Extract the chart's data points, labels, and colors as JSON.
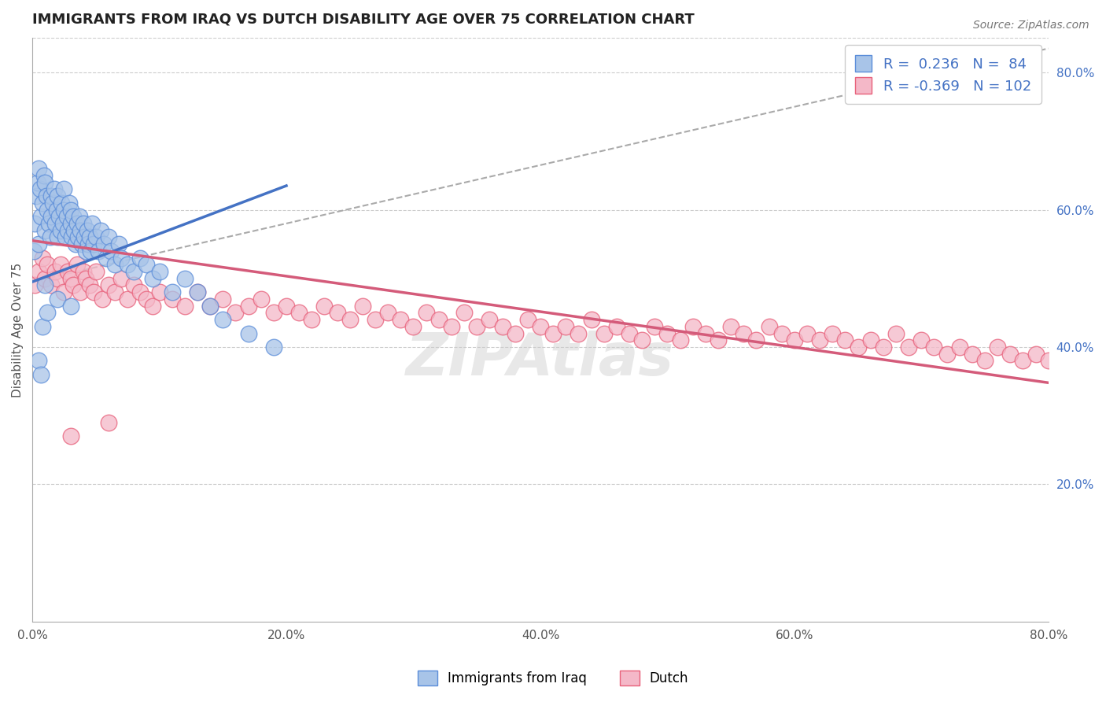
{
  "title": "IMMIGRANTS FROM IRAQ VS DUTCH DISABILITY AGE OVER 75 CORRELATION CHART",
  "source": "Source: ZipAtlas.com",
  "ylabel": "Disability Age Over 75",
  "xlim": [
    0.0,
    0.8
  ],
  "ylim": [
    0.0,
    0.85
  ],
  "xtick_labels": [
    "0.0%",
    "20.0%",
    "40.0%",
    "60.0%",
    "80.0%"
  ],
  "xtick_vals": [
    0.0,
    0.2,
    0.4,
    0.6,
    0.8
  ],
  "ytick_right_labels": [
    "20.0%",
    "40.0%",
    "60.0%",
    "80.0%"
  ],
  "ytick_right_vals": [
    0.2,
    0.4,
    0.6,
    0.8
  ],
  "R_iraq": 0.236,
  "N_iraq": 84,
  "R_dutch": -0.369,
  "N_dutch": 102,
  "color_iraq_fill": "#a8c4e8",
  "color_iraq_edge": "#5b8dd9",
  "color_dutch_fill": "#f4b8c8",
  "color_dutch_edge": "#e8607a",
  "color_trend_iraq": "#4472c4",
  "color_trend_dutch": "#d45b7a",
  "color_trend_dashed": "#aaaaaa",
  "legend_label_iraq": "Immigrants from Iraq",
  "legend_label_dutch": "Dutch",
  "watermark": "ZIPAtlas",
  "background_color": "#ffffff",
  "grid_color": "#cccccc",
  "title_color": "#222222",
  "axis_label_color": "#555555",
  "right_tick_color": "#4472c4",
  "source_color": "#777777",
  "iraq_x": [
    0.001,
    0.002,
    0.003,
    0.004,
    0.005,
    0.005,
    0.006,
    0.007,
    0.008,
    0.009,
    0.01,
    0.01,
    0.011,
    0.012,
    0.013,
    0.014,
    0.015,
    0.015,
    0.016,
    0.017,
    0.018,
    0.019,
    0.02,
    0.02,
    0.021,
    0.022,
    0.023,
    0.024,
    0.025,
    0.025,
    0.026,
    0.027,
    0.028,
    0.029,
    0.03,
    0.03,
    0.031,
    0.032,
    0.033,
    0.034,
    0.035,
    0.036,
    0.037,
    0.038,
    0.039,
    0.04,
    0.041,
    0.042,
    0.043,
    0.044,
    0.045,
    0.046,
    0.047,
    0.048,
    0.05,
    0.052,
    0.054,
    0.056,
    0.058,
    0.06,
    0.062,
    0.065,
    0.068,
    0.07,
    0.075,
    0.08,
    0.085,
    0.09,
    0.095,
    0.1,
    0.11,
    0.12,
    0.13,
    0.14,
    0.15,
    0.17,
    0.19,
    0.01,
    0.02,
    0.03,
    0.005,
    0.007,
    0.008,
    0.012
  ],
  "iraq_y": [
    0.54,
    0.58,
    0.62,
    0.64,
    0.66,
    0.55,
    0.63,
    0.59,
    0.61,
    0.65,
    0.57,
    0.64,
    0.62,
    0.6,
    0.58,
    0.56,
    0.62,
    0.59,
    0.61,
    0.63,
    0.58,
    0.6,
    0.56,
    0.62,
    0.59,
    0.57,
    0.61,
    0.58,
    0.6,
    0.63,
    0.56,
    0.59,
    0.57,
    0.61,
    0.58,
    0.6,
    0.56,
    0.59,
    0.57,
    0.55,
    0.58,
    0.56,
    0.59,
    0.57,
    0.55,
    0.58,
    0.56,
    0.54,
    0.57,
    0.55,
    0.56,
    0.54,
    0.58,
    0.55,
    0.56,
    0.54,
    0.57,
    0.55,
    0.53,
    0.56,
    0.54,
    0.52,
    0.55,
    0.53,
    0.52,
    0.51,
    0.53,
    0.52,
    0.5,
    0.51,
    0.48,
    0.5,
    0.48,
    0.46,
    0.44,
    0.42,
    0.4,
    0.49,
    0.47,
    0.46,
    0.38,
    0.36,
    0.43,
    0.45
  ],
  "dutch_x": [
    0.002,
    0.005,
    0.008,
    0.01,
    0.012,
    0.015,
    0.018,
    0.02,
    0.022,
    0.025,
    0.028,
    0.03,
    0.032,
    0.035,
    0.038,
    0.04,
    0.042,
    0.045,
    0.048,
    0.05,
    0.055,
    0.06,
    0.065,
    0.07,
    0.075,
    0.08,
    0.085,
    0.09,
    0.095,
    0.1,
    0.11,
    0.12,
    0.13,
    0.14,
    0.15,
    0.16,
    0.17,
    0.18,
    0.19,
    0.2,
    0.21,
    0.22,
    0.23,
    0.24,
    0.25,
    0.26,
    0.27,
    0.28,
    0.29,
    0.3,
    0.31,
    0.32,
    0.33,
    0.34,
    0.35,
    0.36,
    0.37,
    0.38,
    0.39,
    0.4,
    0.41,
    0.42,
    0.43,
    0.44,
    0.45,
    0.46,
    0.47,
    0.48,
    0.49,
    0.5,
    0.51,
    0.52,
    0.53,
    0.54,
    0.55,
    0.56,
    0.57,
    0.58,
    0.59,
    0.6,
    0.61,
    0.62,
    0.63,
    0.64,
    0.65,
    0.66,
    0.67,
    0.68,
    0.69,
    0.7,
    0.71,
    0.72,
    0.73,
    0.74,
    0.75,
    0.76,
    0.77,
    0.78,
    0.79,
    0.8,
    0.03,
    0.06
  ],
  "dutch_y": [
    0.49,
    0.51,
    0.53,
    0.5,
    0.52,
    0.49,
    0.51,
    0.5,
    0.52,
    0.48,
    0.51,
    0.5,
    0.49,
    0.52,
    0.48,
    0.51,
    0.5,
    0.49,
    0.48,
    0.51,
    0.47,
    0.49,
    0.48,
    0.5,
    0.47,
    0.49,
    0.48,
    0.47,
    0.46,
    0.48,
    0.47,
    0.46,
    0.48,
    0.46,
    0.47,
    0.45,
    0.46,
    0.47,
    0.45,
    0.46,
    0.45,
    0.44,
    0.46,
    0.45,
    0.44,
    0.46,
    0.44,
    0.45,
    0.44,
    0.43,
    0.45,
    0.44,
    0.43,
    0.45,
    0.43,
    0.44,
    0.43,
    0.42,
    0.44,
    0.43,
    0.42,
    0.43,
    0.42,
    0.44,
    0.42,
    0.43,
    0.42,
    0.41,
    0.43,
    0.42,
    0.41,
    0.43,
    0.42,
    0.41,
    0.43,
    0.42,
    0.41,
    0.43,
    0.42,
    0.41,
    0.42,
    0.41,
    0.42,
    0.41,
    0.4,
    0.41,
    0.4,
    0.42,
    0.4,
    0.41,
    0.4,
    0.39,
    0.4,
    0.39,
    0.38,
    0.4,
    0.39,
    0.38,
    0.39,
    0.38,
    0.27,
    0.29
  ],
  "iraq_trend_x0": 0.0,
  "iraq_trend_x1": 0.2,
  "iraq_trend_y0": 0.495,
  "iraq_trend_y1": 0.635,
  "dashed_trend_x0": 0.0,
  "dashed_trend_x1": 0.8,
  "dashed_trend_y0": 0.495,
  "dashed_trend_y1": 0.835,
  "dutch_trend_x0": 0.0,
  "dutch_trend_x1": 0.8,
  "dutch_trend_y0": 0.555,
  "dutch_trend_y1": 0.348
}
